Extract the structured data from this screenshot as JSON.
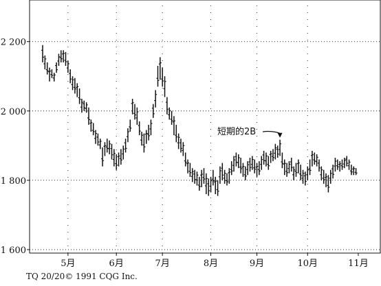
{
  "credit": "TQ 20/20© 1991 CQG Inc.",
  "chart_data": {
    "type": "bar",
    "subtype": "ohlc-price-bars",
    "title": "",
    "xlabel": "",
    "ylabel": "",
    "ylim": [
      1590,
      2320
    ],
    "y_ticks": [
      {
        "value": 2200,
        "label": "2 200"
      },
      {
        "value": 2000,
        "label": "2 000"
      },
      {
        "value": 1800,
        "label": "1 800"
      },
      {
        "value": 1600,
        "label": "1 600"
      }
    ],
    "x_ticks": [
      {
        "index": 11,
        "label": "5月"
      },
      {
        "index": 32,
        "label": "6月"
      },
      {
        "index": 52,
        "label": "7月"
      },
      {
        "index": 73,
        "label": "8月"
      },
      {
        "index": 93,
        "label": "9月"
      },
      {
        "index": 115,
        "label": "10月"
      },
      {
        "index": 137,
        "label": "11月"
      }
    ],
    "x_count": 140,
    "grid": true,
    "annotation": {
      "text": "短期的2B",
      "index": 103,
      "value": 1917
    },
    "bars": [
      [
        0,
        2190,
        2140
      ],
      [
        1,
        2160,
        2120
      ],
      [
        2,
        2140,
        2105
      ],
      [
        3,
        2125,
        2085
      ],
      [
        4,
        2120,
        2095
      ],
      [
        5,
        2110,
        2085
      ],
      [
        6,
        2140,
        2110
      ],
      [
        7,
        2165,
        2130
      ],
      [
        8,
        2175,
        2140
      ],
      [
        9,
        2175,
        2140
      ],
      [
        10,
        2170,
        2130
      ],
      [
        11,
        2145,
        2110
      ],
      [
        12,
        2120,
        2080
      ],
      [
        13,
        2100,
        2060
      ],
      [
        14,
        2095,
        2050
      ],
      [
        15,
        2080,
        2040
      ],
      [
        16,
        2065,
        2020
      ],
      [
        17,
        2035,
        1995
      ],
      [
        18,
        2030,
        2000
      ],
      [
        19,
        2025,
        1995
      ],
      [
        20,
        2010,
        1960
      ],
      [
        21,
        1975,
        1940
      ],
      [
        22,
        1965,
        1930
      ],
      [
        23,
        1945,
        1905
      ],
      [
        24,
        1935,
        1900
      ],
      [
        25,
        1920,
        1890
      ],
      [
        26,
        1895,
        1840
      ],
      [
        27,
        1910,
        1870
      ],
      [
        28,
        1920,
        1880
      ],
      [
        29,
        1915,
        1875
      ],
      [
        30,
        1905,
        1860
      ],
      [
        31,
        1890,
        1840
      ],
      [
        32,
        1875,
        1830
      ],
      [
        33,
        1880,
        1840
      ],
      [
        34,
        1890,
        1845
      ],
      [
        35,
        1900,
        1860
      ],
      [
        36,
        1920,
        1880
      ],
      [
        37,
        1950,
        1910
      ],
      [
        38,
        1975,
        1940
      ],
      [
        39,
        2035,
        1990
      ],
      [
        40,
        2020,
        1975
      ],
      [
        41,
        2010,
        1960
      ],
      [
        42,
        1970,
        1930
      ],
      [
        43,
        1940,
        1900
      ],
      [
        44,
        1935,
        1880
      ],
      [
        45,
        1945,
        1905
      ],
      [
        46,
        1960,
        1915
      ],
      [
        47,
        1975,
        1930
      ],
      [
        48,
        2020,
        1980
      ],
      [
        49,
        2060,
        2010
      ],
      [
        50,
        2130,
        2070
      ],
      [
        51,
        2155,
        2090
      ],
      [
        52,
        2125,
        2070
      ],
      [
        53,
        2100,
        2040
      ],
      [
        54,
        2040,
        1990
      ],
      [
        55,
        2010,
        1975
      ],
      [
        56,
        2000,
        1960
      ],
      [
        57,
        1985,
        1930
      ],
      [
        58,
        1960,
        1910
      ],
      [
        59,
        1935,
        1890
      ],
      [
        60,
        1920,
        1880
      ],
      [
        61,
        1910,
        1870
      ],
      [
        62,
        1880,
        1840
      ],
      [
        63,
        1860,
        1820
      ],
      [
        64,
        1850,
        1810
      ],
      [
        65,
        1835,
        1795
      ],
      [
        66,
        1830,
        1790
      ],
      [
        67,
        1825,
        1785
      ],
      [
        68,
        1810,
        1770
      ],
      [
        69,
        1830,
        1780
      ],
      [
        70,
        1835,
        1790
      ],
      [
        71,
        1820,
        1760
      ],
      [
        72,
        1805,
        1755
      ],
      [
        73,
        1810,
        1765
      ],
      [
        74,
        1830,
        1785
      ],
      [
        75,
        1810,
        1760
      ],
      [
        76,
        1800,
        1755
      ],
      [
        77,
        1840,
        1790
      ],
      [
        78,
        1850,
        1800
      ],
      [
        79,
        1830,
        1790
      ],
      [
        80,
        1820,
        1785
      ],
      [
        81,
        1835,
        1790
      ],
      [
        82,
        1855,
        1815
      ],
      [
        83,
        1870,
        1825
      ],
      [
        84,
        1880,
        1840
      ],
      [
        85,
        1875,
        1835
      ],
      [
        86,
        1865,
        1820
      ],
      [
        87,
        1850,
        1810
      ],
      [
        88,
        1840,
        1800
      ],
      [
        89,
        1855,
        1815
      ],
      [
        90,
        1865,
        1825
      ],
      [
        91,
        1870,
        1830
      ],
      [
        92,
        1860,
        1820
      ],
      [
        93,
        1850,
        1810
      ],
      [
        94,
        1855,
        1815
      ],
      [
        95,
        1870,
        1830
      ],
      [
        96,
        1885,
        1845
      ],
      [
        97,
        1880,
        1840
      ],
      [
        98,
        1870,
        1830
      ],
      [
        99,
        1885,
        1850
      ],
      [
        100,
        1890,
        1855
      ],
      [
        101,
        1905,
        1860
      ],
      [
        102,
        1900,
        1865
      ],
      [
        103,
        1917,
        1870
      ],
      [
        104,
        1880,
        1835
      ],
      [
        105,
        1860,
        1815
      ],
      [
        106,
        1850,
        1810
      ],
      [
        107,
        1855,
        1820
      ],
      [
        108,
        1865,
        1825
      ],
      [
        109,
        1840,
        1800
      ],
      [
        110,
        1850,
        1810
      ],
      [
        111,
        1860,
        1820
      ],
      [
        112,
        1845,
        1800
      ],
      [
        113,
        1830,
        1790
      ],
      [
        114,
        1825,
        1785
      ],
      [
        115,
        1840,
        1800
      ],
      [
        116,
        1860,
        1815
      ],
      [
        117,
        1885,
        1840
      ],
      [
        118,
        1880,
        1845
      ],
      [
        119,
        1875,
        1840
      ],
      [
        120,
        1860,
        1825
      ],
      [
        121,
        1840,
        1800
      ],
      [
        122,
        1830,
        1790
      ],
      [
        123,
        1820,
        1780
      ],
      [
        124,
        1815,
        1765
      ],
      [
        125,
        1830,
        1790
      ],
      [
        126,
        1845,
        1805
      ],
      [
        127,
        1865,
        1825
      ],
      [
        128,
        1860,
        1830
      ],
      [
        129,
        1855,
        1825
      ],
      [
        130,
        1860,
        1830
      ],
      [
        131,
        1865,
        1835
      ],
      [
        132,
        1870,
        1840
      ],
      [
        133,
        1860,
        1830
      ],
      [
        134,
        1845,
        1815
      ],
      [
        135,
        1840,
        1815
      ],
      [
        136,
        1835,
        1815
      ]
    ]
  }
}
